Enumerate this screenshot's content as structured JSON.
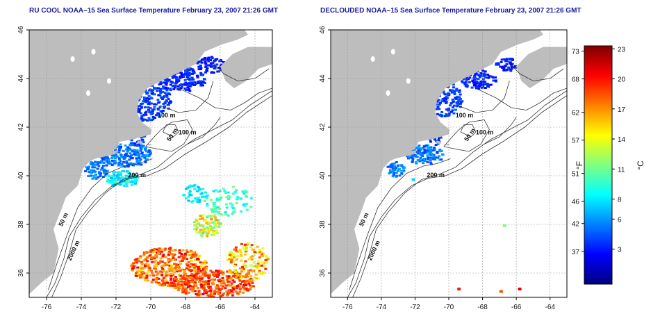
{
  "panels": [
    {
      "id": "left",
      "title": "RU COOL NOAA–15 Sea Surface Temperature February 23, 2007 21:26 GMT",
      "variant": "cool"
    },
    {
      "id": "right",
      "title": "DECLOUDED NOAA–15 Sea Surface Temperature February 23, 2007 21:26 GMT",
      "variant": "declouded"
    }
  ],
  "axes": {
    "x_ticks": [
      "-76",
      "-74",
      "-72",
      "-70",
      "-68",
      "-66",
      "-64"
    ],
    "y_ticks": [
      "36",
      "38",
      "40",
      "42",
      "44",
      "46"
    ],
    "lon_range": [
      -77,
      -63
    ],
    "lat_range": [
      35,
      46
    ]
  },
  "contour_labels_left": [
    "100 m",
    "100 m",
    "50 m",
    "200 m",
    "50 m",
    "2000 m"
  ],
  "contour_labels_right": [
    "100 m",
    "100 m",
    "50 m",
    "200 m",
    "50 m",
    "2000 m"
  ],
  "colorbar": {
    "fahrenheit_label": "°F",
    "celsius_label": "°C",
    "fahrenheit_ticks": [
      "73",
      "68",
      "62",
      "57",
      "51",
      "46",
      "42",
      "37"
    ],
    "celsius_ticks": [
      "23",
      "20",
      "17",
      "14",
      "11",
      "8",
      "6",
      "3"
    ],
    "range_c": [
      -0.5,
      23.3
    ],
    "colors": [
      "#00007f",
      "#0000ff",
      "#0080ff",
      "#00ffff",
      "#80ff80",
      "#ffff00",
      "#ff8000",
      "#ff0000",
      "#7f0000"
    ]
  },
  "colors": {
    "land": "#bdbdbd",
    "ocean": "#ffffff",
    "title": "#1a1aa0",
    "grid": "#9a9a9a"
  }
}
